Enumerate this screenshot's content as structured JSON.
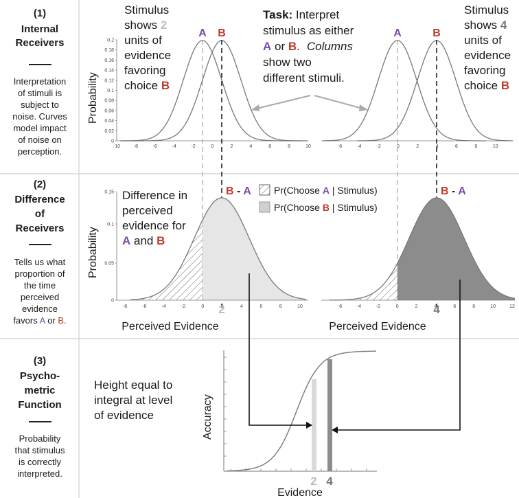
{
  "rows": [
    {
      "num": "(1)",
      "title": [
        "Internal",
        "Receivers"
      ],
      "desc": [
        "Interpretation",
        "of stimuli is",
        "subject to",
        "noise. Curves",
        "model impact",
        "of noise on",
        "perception."
      ]
    },
    {
      "num": "(2)",
      "title": [
        "Difference",
        "of",
        "Receivers"
      ],
      "desc": [
        "Tells us what",
        "proportion of",
        "the time",
        "perceived",
        "evidence"
      ],
      "desc_last": {
        "pre": "favors ",
        "a": "A",
        "mid": " or ",
        "b": "B",
        "post": "."
      }
    },
    {
      "num": "(3)",
      "title": [
        "Psycho-",
        "metric",
        "Function"
      ],
      "desc": [
        "Probability",
        "that stimulus",
        "is correctly",
        "interpreted."
      ]
    }
  ],
  "top": {
    "left_note": {
      "l1": "Stimulus",
      "l2_pre": "shows ",
      "l2_num": "2",
      "l3": "units of",
      "l4": "evidence",
      "l5": "favoring",
      "l6_pre": "choice ",
      "l6_b": "B"
    },
    "right_note": {
      "l1": "Stimulus",
      "l2_pre": "shows ",
      "l2_num": "4",
      "l3": "units of",
      "l4": "evidence",
      "l5": "favoring",
      "l6_pre": "choice ",
      "l6_b": "B"
    },
    "task": {
      "bold": "Task:",
      "l1": " Interpret",
      "l2": "stimulus as either",
      "l3_a": "A",
      "l3_mid": " or ",
      "l3_b": "B",
      "l3_dot": ".",
      "l3_cols": "Columns",
      "l4": "show two",
      "l5": "different stimuli."
    },
    "ylabel": "Probability",
    "label_a": "A",
    "label_b": "B",
    "yticks": [
      "0.2",
      "0.18",
      "0.16",
      "0.14",
      "0.12",
      "0.1",
      "0.08",
      "0.06",
      "0.04",
      "0.02",
      "0"
    ],
    "xticks_left": [
      "-10",
      "-8",
      "-6",
      "-4",
      "-2",
      "0",
      "2",
      "4",
      "6",
      "8",
      "10"
    ],
    "xticks_right": [
      "-6",
      "-4",
      "-2",
      "0",
      "2",
      "4",
      "6",
      "8",
      "10"
    ]
  },
  "middle": {
    "note": {
      "l1": "Difference in",
      "l2": "perceived",
      "l3": "evidence for",
      "l4_a": "A",
      "l4_mid": " and ",
      "l4_b": "B"
    },
    "ylabel": "Probability",
    "diff_b": "B",
    "diff_sep": " - ",
    "diff_a": "A",
    "legend1": {
      "pre": "Pr(Choose ",
      "letter": "A",
      "post": " | Stimulus)"
    },
    "legend2": {
      "pre": "Pr(Choose ",
      "letter": "B",
      "post": " | Stimulus)"
    },
    "yticks": [
      "0.15",
      "0.1",
      "0.05",
      "0"
    ],
    "xticks_left": [
      "-8",
      "-6",
      "-4",
      "-2",
      "0",
      "2",
      "4",
      "6",
      "8",
      "10"
    ],
    "xticks_right": [
      "-6",
      "-4",
      "-2",
      "0",
      "2",
      "4",
      "6",
      "8",
      "10",
      "12"
    ],
    "xlabel": "Perceived Evidence",
    "marker_left": "2",
    "marker_right": "4"
  },
  "bottom": {
    "note": [
      "Height equal to",
      "integral at level",
      "of evidence"
    ],
    "ylabel": "Accuracy",
    "xlabel": "Evidence",
    "marker_left": "2",
    "marker_right": "4"
  },
  "colors": {
    "purple": "#7b4aa5",
    "red": "#c0392b",
    "light_fill": "#e6e6e6",
    "dark_fill": "#8c8c8c"
  }
}
